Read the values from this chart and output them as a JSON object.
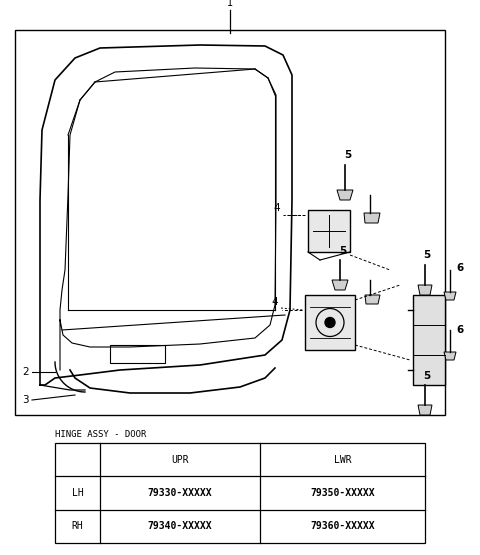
{
  "bg_color": "#ffffff",
  "line_color": "#000000",
  "table_title": "HINGE ASSY - DOOR",
  "table_col_labels": [
    "UPR",
    "LWR"
  ],
  "table_row_labels": [
    "LH",
    "RH"
  ],
  "table_data": [
    [
      "79330-XXXXX",
      "79350-XXXXX"
    ],
    [
      "79340-XXXXX",
      "79360-XXXXX"
    ]
  ]
}
